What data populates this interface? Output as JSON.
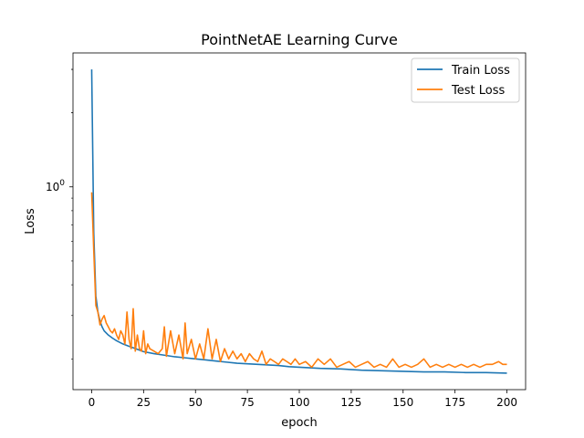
{
  "chart_data": {
    "type": "line",
    "title": "PointNetAE Learning Curve",
    "xlabel": "epoch",
    "ylabel": "Loss",
    "xlim": [
      -9,
      209
    ],
    "ylim": [
      0.15,
      3.5
    ],
    "yscale": "log",
    "xticks": [
      0,
      25,
      50,
      75,
      100,
      125,
      150,
      175,
      200
    ],
    "yticks": [
      1
    ],
    "ytick_labels": [
      "10^0"
    ],
    "grid": false,
    "legend_position": "top-right",
    "series": [
      {
        "name": "Train Loss",
        "color": "#1f77b4",
        "x": [
          0,
          1,
          2,
          3,
          4,
          5,
          6,
          8,
          10,
          12,
          15,
          18,
          20,
          25,
          30,
          35,
          40,
          45,
          50,
          55,
          60,
          65,
          70,
          75,
          80,
          85,
          90,
          95,
          100,
          110,
          120,
          130,
          140,
          150,
          160,
          170,
          180,
          190,
          200
        ],
        "y": [
          3.0,
          0.65,
          0.36,
          0.31,
          0.285,
          0.27,
          0.26,
          0.25,
          0.243,
          0.237,
          0.23,
          0.225,
          0.222,
          0.214,
          0.21,
          0.207,
          0.204,
          0.202,
          0.2,
          0.198,
          0.196,
          0.194,
          0.192,
          0.191,
          0.19,
          0.189,
          0.188,
          0.186,
          0.185,
          0.183,
          0.182,
          0.18,
          0.179,
          0.178,
          0.177,
          0.177,
          0.176,
          0.176,
          0.175
        ]
      },
      {
        "name": "Test Loss",
        "color": "#ff7f0e",
        "x": [
          0,
          1,
          2,
          3,
          4,
          5,
          6,
          7,
          8,
          9,
          10,
          11,
          12,
          13,
          14,
          15,
          16,
          17,
          18,
          19,
          20,
          21,
          22,
          23,
          24,
          25,
          26,
          27,
          28,
          30,
          32,
          34,
          35,
          36,
          38,
          40,
          42,
          44,
          45,
          46,
          48,
          50,
          52,
          54,
          56,
          58,
          60,
          62,
          64,
          66,
          68,
          70,
          72,
          74,
          76,
          78,
          80,
          82,
          84,
          86,
          88,
          90,
          92,
          94,
          96,
          98,
          100,
          103,
          106,
          109,
          112,
          115,
          118,
          121,
          124,
          127,
          130,
          133,
          136,
          139,
          142,
          145,
          148,
          151,
          154,
          157,
          160,
          163,
          166,
          169,
          172,
          175,
          178,
          181,
          184,
          187,
          190,
          193,
          196,
          198,
          200
        ],
        "y": [
          0.95,
          0.55,
          0.33,
          0.31,
          0.275,
          0.29,
          0.3,
          0.28,
          0.27,
          0.26,
          0.255,
          0.265,
          0.25,
          0.24,
          0.26,
          0.25,
          0.23,
          0.31,
          0.24,
          0.22,
          0.32,
          0.215,
          0.25,
          0.22,
          0.215,
          0.26,
          0.21,
          0.23,
          0.22,
          0.215,
          0.21,
          0.22,
          0.27,
          0.205,
          0.26,
          0.21,
          0.25,
          0.2,
          0.28,
          0.21,
          0.24,
          0.2,
          0.23,
          0.2,
          0.265,
          0.2,
          0.24,
          0.195,
          0.22,
          0.2,
          0.215,
          0.2,
          0.21,
          0.195,
          0.21,
          0.2,
          0.195,
          0.215,
          0.19,
          0.2,
          0.195,
          0.19,
          0.2,
          0.195,
          0.19,
          0.2,
          0.19,
          0.195,
          0.185,
          0.2,
          0.19,
          0.2,
          0.185,
          0.19,
          0.195,
          0.185,
          0.19,
          0.195,
          0.185,
          0.19,
          0.185,
          0.2,
          0.185,
          0.19,
          0.185,
          0.19,
          0.2,
          0.185,
          0.19,
          0.185,
          0.19,
          0.185,
          0.19,
          0.185,
          0.19,
          0.185,
          0.19,
          0.19,
          0.195,
          0.19,
          0.19
        ]
      }
    ]
  }
}
